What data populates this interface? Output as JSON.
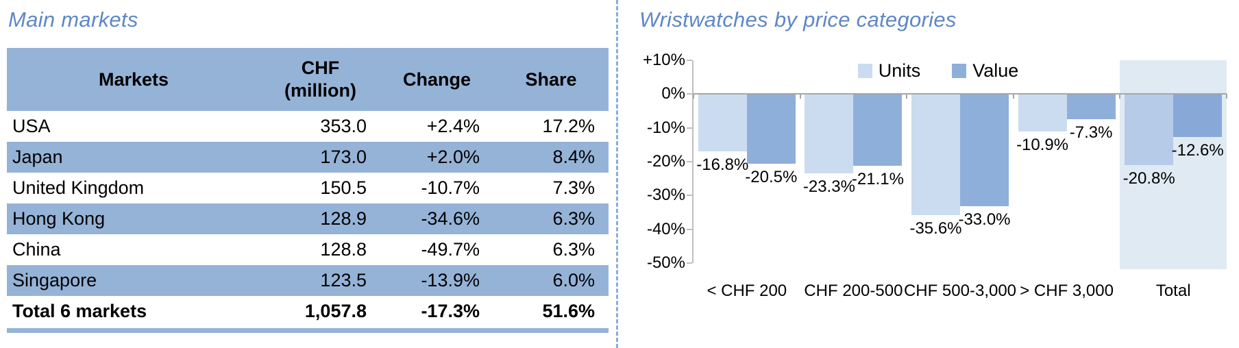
{
  "colors": {
    "title_blue": "#5d87c6",
    "table_blue": "#95b3d7",
    "divider_blue": "#85aede",
    "axis_gray": "#bfbfbf",
    "zero_gray": "#a6a6a6"
  },
  "left_panel": {
    "title": "Main markets",
    "table": {
      "headers": {
        "markets": "Markets",
        "chf_line1": "CHF",
        "chf_line2": "(million)",
        "change": "Change",
        "share": "Share"
      },
      "rows": [
        {
          "market": "USA",
          "chf": "353.0",
          "change": "+2.4%",
          "share": "17.2%"
        },
        {
          "market": "Japan",
          "chf": "173.0",
          "change": "+2.0%",
          "share": "8.4%"
        },
        {
          "market": "United Kingdom",
          "chf": "150.5",
          "change": "-10.7%",
          "share": "7.3%"
        },
        {
          "market": "Hong Kong",
          "chf": "128.9",
          "change": "-34.6%",
          "share": "6.3%"
        },
        {
          "market": "China",
          "chf": "128.8",
          "change": "-49.7%",
          "share": "6.3%"
        },
        {
          "market": "Singapore",
          "chf": "123.5",
          "change": "-13.9%",
          "share": "6.0%"
        }
      ],
      "total_row": {
        "market": "Total 6 markets",
        "chf": "1,057.8",
        "change": "-17.3%",
        "share": "51.6%"
      }
    }
  },
  "right_panel": {
    "title": "Wristwatches by price categories"
  },
  "chart_data": {
    "type": "bar",
    "title": "Wristwatches by price categories",
    "categories": [
      "< CHF 200",
      "CHF 200-500",
      "CHF 500-3,000",
      "> CHF 3,000",
      "Total"
    ],
    "series": [
      {
        "name": "Units",
        "values": [
          -16.8,
          -23.3,
          -35.6,
          -10.9,
          -20.8
        ],
        "labels": [
          "-16.8%",
          "-23.3%",
          "-35.6%",
          "-10.9%",
          "-20.8%"
        ]
      },
      {
        "name": "Value",
        "values": [
          -20.5,
          -21.1,
          -33.0,
          -7.3,
          -12.6
        ],
        "labels": [
          "-20.5%",
          "-21.1%",
          "-33.0%",
          "-7.3%",
          "-12.6%"
        ]
      }
    ],
    "xlabel": "",
    "ylabel": "",
    "ylim": [
      -50,
      10
    ],
    "y_axis": {
      "ticks": [
        "+10%",
        "0%",
        "-10%",
        "-20%",
        "-30%",
        "-40%",
        "-50%"
      ],
      "tick_values": [
        10,
        0,
        -10,
        -20,
        -30,
        -40,
        -50
      ]
    },
    "legend_position": "top-center",
    "grid": false,
    "highlight_category": "Total",
    "colors": {
      "units": "#cbdcf1",
      "value": "#8fafdb",
      "units_total": "#b6cbe8",
      "value_total": "#88a8d8",
      "band": "#dfeaf3"
    }
  }
}
